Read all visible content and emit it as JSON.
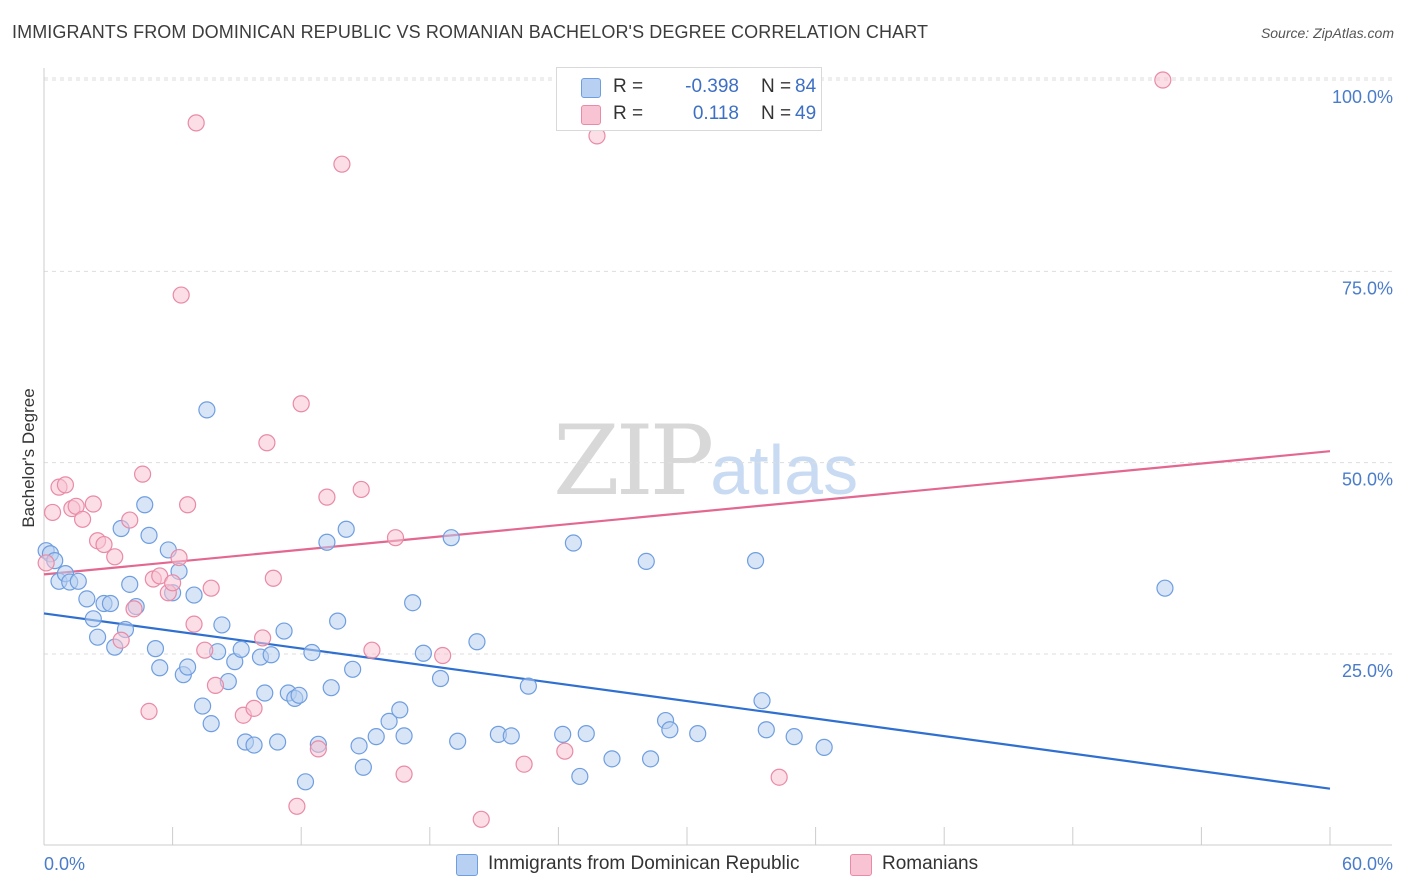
{
  "title": "IMMIGRANTS FROM DOMINICAN REPUBLIC VS ROMANIAN BACHELOR'S DEGREE CORRELATION CHART",
  "source": "Source: ZipAtlas.com",
  "watermark": {
    "zip": "ZIP",
    "atlas": "atlas"
  },
  "legend": {
    "r_label": "R =",
    "n_label": "N =",
    "series": [
      {
        "r": "-0.398",
        "n": "84"
      },
      {
        "r": "0.118",
        "n": "49"
      }
    ]
  },
  "colors": {
    "blue_fill": "#b8d0f1",
    "blue_stroke": "#6f9ee0",
    "blue_line": "#2f6fd0",
    "pink_fill": "#f8c3d2",
    "pink_stroke": "#e98aa6",
    "pink_line": "#e3678f",
    "grid": "#dddddd",
    "tick_text": "#4a7cc9"
  },
  "chart_data": {
    "type": "scatter",
    "title": "IMMIGRANTS FROM DOMINICAN REPUBLIC VS ROMANIAN BACHELOR'S DEGREE CORRELATION CHART",
    "xlabel": "",
    "ylabel": "Bachelor's Degree",
    "xlim": [
      0,
      60
    ],
    "ylim": [
      0,
      103
    ],
    "x_tick_labels": [
      "0.0%",
      "60.0%"
    ],
    "y_ticks": [
      25,
      50,
      75,
      100
    ],
    "y_tick_labels": [
      "25.0%",
      "50.0%",
      "75.0%",
      "100.0%"
    ],
    "grid": true,
    "legend_position": "top-center",
    "series": [
      {
        "name": "Immigrants from Dominican Republic",
        "color": "blue",
        "trend": {
          "x": [
            0,
            60
          ],
          "y": [
            30.3,
            7.4
          ]
        },
        "points": [
          [
            0.1,
            38.5
          ],
          [
            0.3,
            38.1
          ],
          [
            0.5,
            37.2
          ],
          [
            0.7,
            34.5
          ],
          [
            1.0,
            35.5
          ],
          [
            1.2,
            34.4
          ],
          [
            1.6,
            34.5
          ],
          [
            2.0,
            32.2
          ],
          [
            2.3,
            29.6
          ],
          [
            2.5,
            27.2
          ],
          [
            2.8,
            31.6
          ],
          [
            3.1,
            31.6
          ],
          [
            3.3,
            25.9
          ],
          [
            3.6,
            41.4
          ],
          [
            3.8,
            28.2
          ],
          [
            4.0,
            34.1
          ],
          [
            4.3,
            31.2
          ],
          [
            4.7,
            44.5
          ],
          [
            4.9,
            40.5
          ],
          [
            5.2,
            25.7
          ],
          [
            5.4,
            23.2
          ],
          [
            5.8,
            38.6
          ],
          [
            6.0,
            33.0
          ],
          [
            6.3,
            35.8
          ],
          [
            6.5,
            22.3
          ],
          [
            6.7,
            23.3
          ],
          [
            7.0,
            32.7
          ],
          [
            7.4,
            18.2
          ],
          [
            7.6,
            56.9
          ],
          [
            7.8,
            15.9
          ],
          [
            8.1,
            25.3
          ],
          [
            8.3,
            28.8
          ],
          [
            8.6,
            21.4
          ],
          [
            8.9,
            24.0
          ],
          [
            9.2,
            25.6
          ],
          [
            9.4,
            13.5
          ],
          [
            9.8,
            13.1
          ],
          [
            10.1,
            24.6
          ],
          [
            10.3,
            19.9
          ],
          [
            10.6,
            24.9
          ],
          [
            10.9,
            13.5
          ],
          [
            11.2,
            28.0
          ],
          [
            11.4,
            19.9
          ],
          [
            11.7,
            19.2
          ],
          [
            11.9,
            19.6
          ],
          [
            12.2,
            8.3
          ],
          [
            12.5,
            25.2
          ],
          [
            12.8,
            13.2
          ],
          [
            13.2,
            39.6
          ],
          [
            13.4,
            20.6
          ],
          [
            13.7,
            29.3
          ],
          [
            14.1,
            41.3
          ],
          [
            14.4,
            23.0
          ],
          [
            14.7,
            13.0
          ],
          [
            14.9,
            10.2
          ],
          [
            15.5,
            14.2
          ],
          [
            16.1,
            16.2
          ],
          [
            16.6,
            17.7
          ],
          [
            16.8,
            14.3
          ],
          [
            17.2,
            31.7
          ],
          [
            17.7,
            25.1
          ],
          [
            18.5,
            21.8
          ],
          [
            19.0,
            40.2
          ],
          [
            19.3,
            13.6
          ],
          [
            20.2,
            26.6
          ],
          [
            21.2,
            14.5
          ],
          [
            21.8,
            14.3
          ],
          [
            22.6,
            20.8
          ],
          [
            24.2,
            14.5
          ],
          [
            24.7,
            39.5
          ],
          [
            25.0,
            9.0
          ],
          [
            25.3,
            14.6
          ],
          [
            26.5,
            11.3
          ],
          [
            28.1,
            37.1
          ],
          [
            28.3,
            11.3
          ],
          [
            29.0,
            16.3
          ],
          [
            29.2,
            15.1
          ],
          [
            30.5,
            14.6
          ],
          [
            33.2,
            37.2
          ],
          [
            33.5,
            18.9
          ],
          [
            33.7,
            15.1
          ],
          [
            35.0,
            14.2
          ],
          [
            36.4,
            12.8
          ],
          [
            52.3,
            33.6
          ]
        ]
      },
      {
        "name": "Romanians",
        "color": "pink",
        "trend": {
          "x": [
            0,
            60
          ],
          "y": [
            35.4,
            51.5
          ]
        },
        "points": [
          [
            0.1,
            36.9
          ],
          [
            0.4,
            43.5
          ],
          [
            0.7,
            46.8
          ],
          [
            1.0,
            47.1
          ],
          [
            1.3,
            44.0
          ],
          [
            1.5,
            44.3
          ],
          [
            1.8,
            42.6
          ],
          [
            2.3,
            44.6
          ],
          [
            2.5,
            39.8
          ],
          [
            2.8,
            39.3
          ],
          [
            3.3,
            37.7
          ],
          [
            3.6,
            26.8
          ],
          [
            4.0,
            42.5
          ],
          [
            4.2,
            30.9
          ],
          [
            4.6,
            48.5
          ],
          [
            4.9,
            17.5
          ],
          [
            5.1,
            34.8
          ],
          [
            5.4,
            35.2
          ],
          [
            5.8,
            33.0
          ],
          [
            6.0,
            34.3
          ],
          [
            6.3,
            37.6
          ],
          [
            6.4,
            71.9
          ],
          [
            6.7,
            44.5
          ],
          [
            7.0,
            28.9
          ],
          [
            7.1,
            94.4
          ],
          [
            7.5,
            25.5
          ],
          [
            7.8,
            33.6
          ],
          [
            8.0,
            20.9
          ],
          [
            9.3,
            17.0
          ],
          [
            9.8,
            17.9
          ],
          [
            10.2,
            27.1
          ],
          [
            10.4,
            52.6
          ],
          [
            10.7,
            34.9
          ],
          [
            11.8,
            5.1
          ],
          [
            12.0,
            57.7
          ],
          [
            12.8,
            12.6
          ],
          [
            13.2,
            45.5
          ],
          [
            13.9,
            89.0
          ],
          [
            14.8,
            46.5
          ],
          [
            15.3,
            25.5
          ],
          [
            16.4,
            40.2
          ],
          [
            16.8,
            9.3
          ],
          [
            18.6,
            24.8
          ],
          [
            20.4,
            3.4
          ],
          [
            22.4,
            10.6
          ],
          [
            24.3,
            12.3
          ],
          [
            25.8,
            92.7
          ],
          [
            34.3,
            8.9
          ],
          [
            52.2,
            100.0
          ]
        ]
      }
    ]
  },
  "bottom_legend": [
    "Immigrants from Dominican Republic",
    "Romanians"
  ]
}
